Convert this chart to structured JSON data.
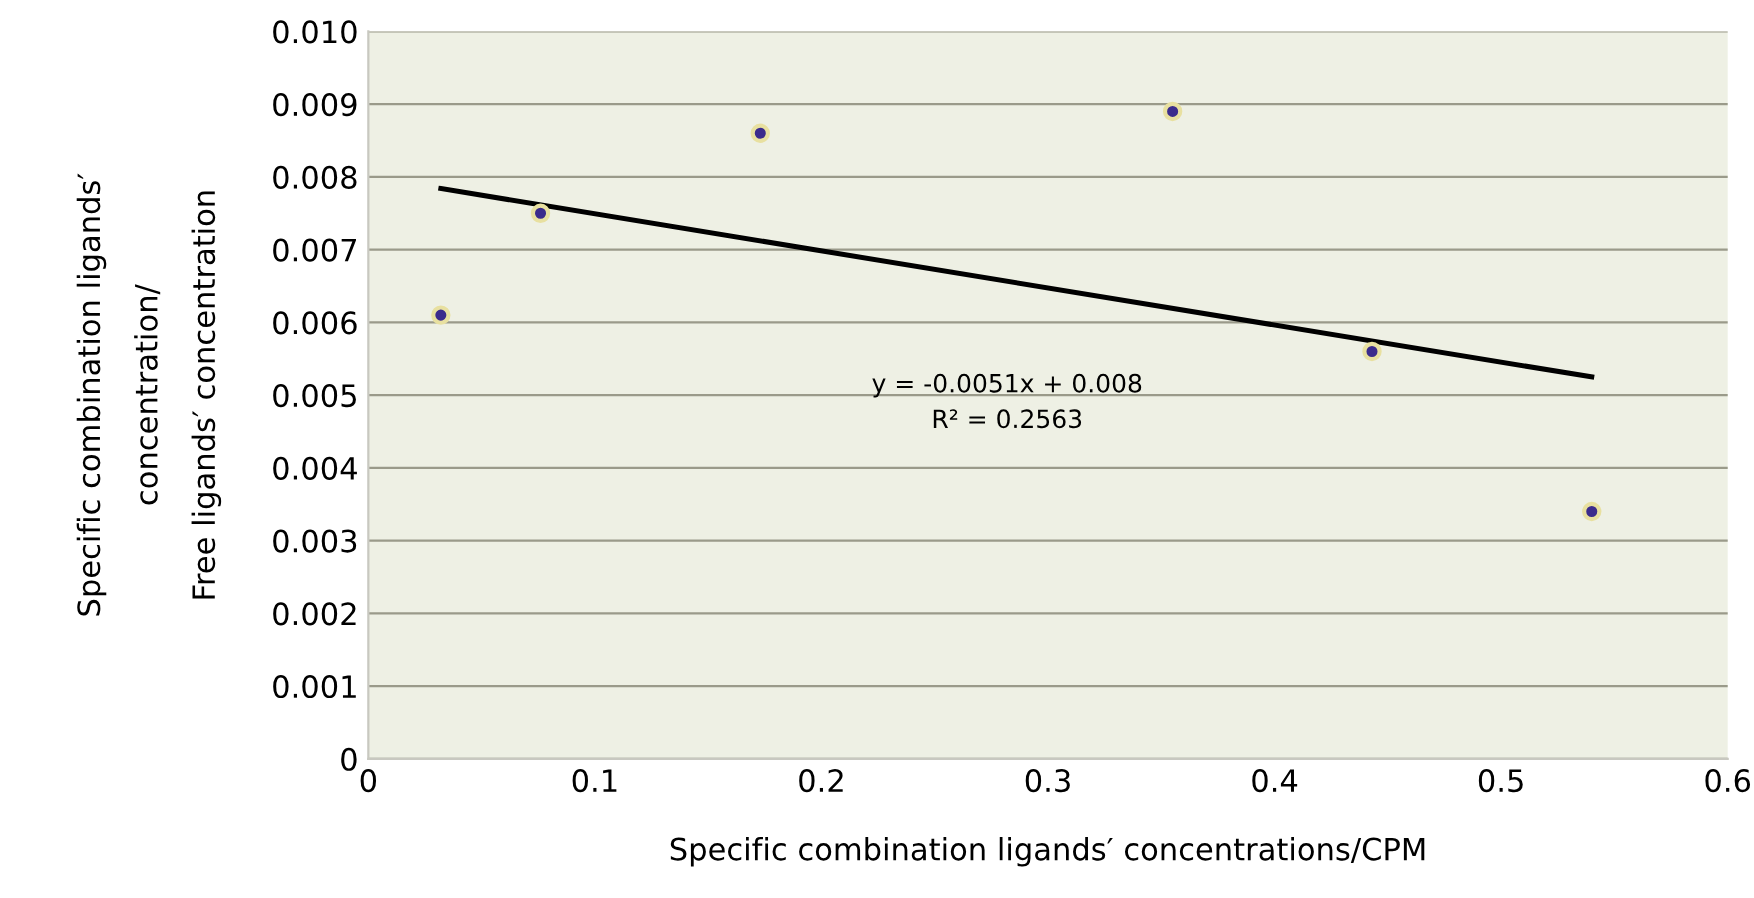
{
  "chart_data": {
    "type": "scatter",
    "xlabel": "Specific combination ligands′ concentrations/CPM",
    "ylabel": "Specific combination ligands′\nconcentration/\nFree ligands′ concentration",
    "series": [
      {
        "color": "#3b2b8c",
        "marker": "circle",
        "x": [
          0.032,
          0.076,
          0.173,
          0.355,
          0.443,
          0.54
        ],
        "values": [
          0.0061,
          0.0075,
          0.0086,
          0.0089,
          0.0056,
          0.0034
        ]
      },
      {
        "type": "line",
        "marker": "none",
        "color": "#000000",
        "x": [
          0.032,
          0.54
        ],
        "values": [
          0.00784,
          0.00525
        ]
      }
    ],
    "annotations": [
      "y = -0.0051x + 0.008\nR² = 0.2563"
    ],
    "xlim": [
      0,
      0.6
    ],
    "xticks": [
      0,
      0.1,
      0.2,
      0.3,
      0.4,
      0.5,
      0.6
    ],
    "ylim": [
      0,
      0.01
    ],
    "yticks": [
      {
        "value": 0,
        "label": "0"
      },
      {
        "value": 0.001,
        "label": "0.001"
      },
      {
        "value": 0.002,
        "label": "0.002"
      },
      {
        "value": 0.003,
        "label": "0.003"
      },
      {
        "value": 0.004,
        "label": "0.004"
      },
      {
        "value": 0.005,
        "label": "0.005"
      },
      {
        "value": 0.006,
        "label": "0.006"
      },
      {
        "value": 0.007,
        "label": "0.007"
      },
      {
        "value": 0.008,
        "label": "0.008"
      },
      {
        "value": 0.009,
        "label": "0.009"
      },
      {
        "value": 0.01,
        "label": "0.010"
      }
    ],
    "grid": "y"
  }
}
